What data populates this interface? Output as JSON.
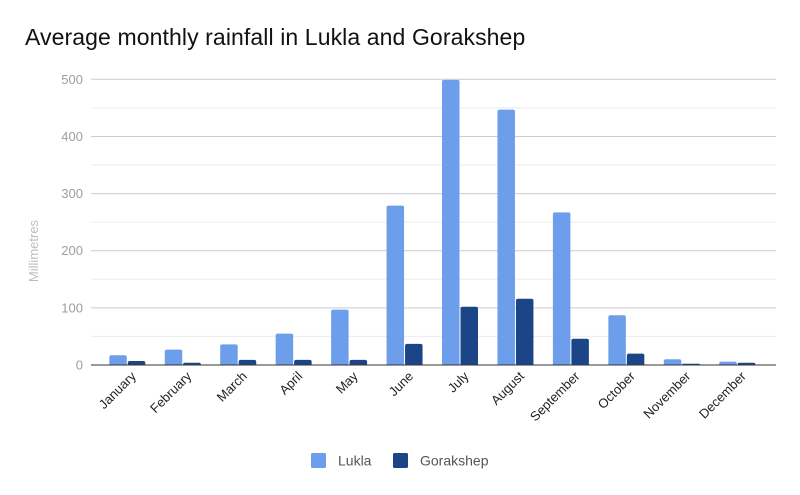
{
  "chart": {
    "title": "Average monthly rainfall in Lukla and Gorakshep",
    "y_axis_label": "Millimetres",
    "legend": [
      {
        "label": "Lukla",
        "color": "#6d9eeb"
      },
      {
        "label": "Gorakshep",
        "color": "#1c4587"
      }
    ]
  },
  "colors": {
    "lukla": "#6d9eeb",
    "gorakshep": "#1c4587",
    "major_grid": "#cccccc",
    "minor_grid": "#ebebeb",
    "axis_line": "#333333",
    "tick_label": "#9e9e9e",
    "axis_title": "#bdbdbd",
    "category_label": "#222222",
    "legend_text": "#555555"
  },
  "chart_data": {
    "type": "bar",
    "title": "Average monthly rainfall in Lukla and Gorakshep",
    "xlabel": "",
    "ylabel": "Millimetres",
    "ylim": [
      0,
      500
    ],
    "yticks": [
      0,
      100,
      200,
      300,
      400,
      500
    ],
    "minor_grid_step": 50,
    "grid": true,
    "legend_position": "bottom",
    "categories": [
      "January",
      "February",
      "March",
      "April",
      "May",
      "June",
      "July",
      "August",
      "September",
      "October",
      "November",
      "December"
    ],
    "series": [
      {
        "name": "Lukla",
        "color": "#6d9eeb",
        "values": [
          17,
          27,
          36,
          55,
          97,
          279,
          499,
          447,
          267,
          87,
          10,
          6
        ]
      },
      {
        "name": "Gorakshep",
        "color": "#1c4587",
        "values": [
          7,
          4,
          9,
          9,
          9,
          37,
          102,
          116,
          46,
          20,
          1,
          4
        ]
      }
    ]
  }
}
